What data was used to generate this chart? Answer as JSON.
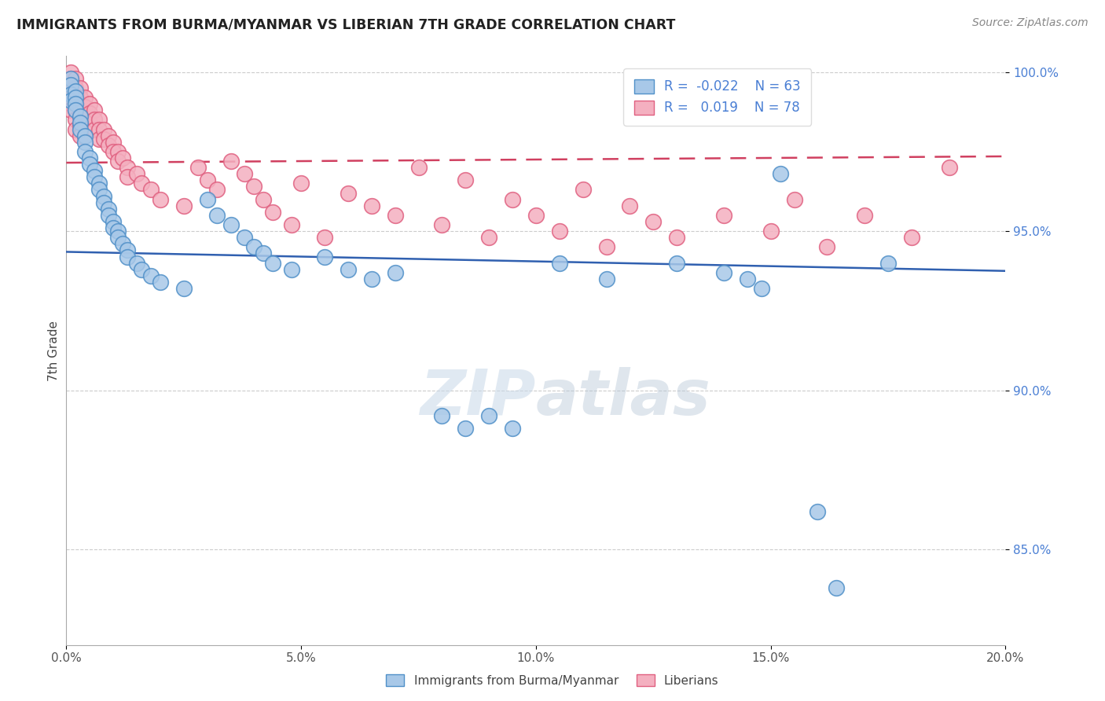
{
  "title": "IMMIGRANTS FROM BURMA/MYANMAR VS LIBERIAN 7TH GRADE CORRELATION CHART",
  "source": "Source: ZipAtlas.com",
  "ylabel": "7th Grade",
  "xlim": [
    0.0,
    0.2
  ],
  "ylim": [
    0.82,
    1.005
  ],
  "ytick_labels": [
    "85.0%",
    "90.0%",
    "95.0%",
    "100.0%"
  ],
  "ytick_vals": [
    0.85,
    0.9,
    0.95,
    1.0
  ],
  "xtick_labels": [
    "0.0%",
    "",
    "5.0%",
    "",
    "10.0%",
    "",
    "15.0%",
    "",
    "20.0%"
  ],
  "xtick_vals": [
    0.0,
    0.025,
    0.05,
    0.075,
    0.1,
    0.125,
    0.15,
    0.175,
    0.2
  ],
  "blue_color": "#a8c8e8",
  "pink_color": "#f4b0c0",
  "blue_edge_color": "#5090c8",
  "pink_edge_color": "#e06080",
  "blue_line_color": "#3060b0",
  "pink_line_color": "#d04060",
  "legend_blue_fill": "#a8c8e8",
  "legend_pink_fill": "#f4b0c0",
  "watermark_color": "#c8d8e8",
  "blue_line_y0": 0.9435,
  "blue_line_y1": 0.9375,
  "pink_line_y0": 0.9715,
  "pink_line_y1": 0.9735,
  "blue_scatter": [
    [
      0.001,
      0.998
    ],
    [
      0.001,
      0.996
    ],
    [
      0.001,
      0.993
    ],
    [
      0.001,
      0.991
    ],
    [
      0.002,
      0.994
    ],
    [
      0.002,
      0.992
    ],
    [
      0.002,
      0.99
    ],
    [
      0.002,
      0.988
    ],
    [
      0.003,
      0.986
    ],
    [
      0.003,
      0.984
    ],
    [
      0.003,
      0.982
    ],
    [
      0.004,
      0.98
    ],
    [
      0.004,
      0.978
    ],
    [
      0.004,
      0.975
    ],
    [
      0.005,
      0.973
    ],
    [
      0.005,
      0.971
    ],
    [
      0.006,
      0.969
    ],
    [
      0.006,
      0.967
    ],
    [
      0.007,
      0.965
    ],
    [
      0.007,
      0.963
    ],
    [
      0.008,
      0.961
    ],
    [
      0.008,
      0.959
    ],
    [
      0.009,
      0.957
    ],
    [
      0.009,
      0.955
    ],
    [
      0.01,
      0.953
    ],
    [
      0.01,
      0.951
    ],
    [
      0.011,
      0.95
    ],
    [
      0.011,
      0.948
    ],
    [
      0.012,
      0.946
    ],
    [
      0.013,
      0.944
    ],
    [
      0.013,
      0.942
    ],
    [
      0.015,
      0.94
    ],
    [
      0.016,
      0.938
    ],
    [
      0.018,
      0.936
    ],
    [
      0.02,
      0.934
    ],
    [
      0.025,
      0.932
    ],
    [
      0.03,
      0.96
    ],
    [
      0.032,
      0.955
    ],
    [
      0.035,
      0.952
    ],
    [
      0.038,
      0.948
    ],
    [
      0.04,
      0.945
    ],
    [
      0.042,
      0.943
    ],
    [
      0.044,
      0.94
    ],
    [
      0.048,
      0.938
    ],
    [
      0.055,
      0.942
    ],
    [
      0.06,
      0.938
    ],
    [
      0.065,
      0.935
    ],
    [
      0.07,
      0.937
    ],
    [
      0.08,
      0.892
    ],
    [
      0.085,
      0.888
    ],
    [
      0.09,
      0.892
    ],
    [
      0.095,
      0.888
    ],
    [
      0.105,
      0.94
    ],
    [
      0.115,
      0.935
    ],
    [
      0.13,
      0.94
    ],
    [
      0.14,
      0.937
    ],
    [
      0.145,
      0.935
    ],
    [
      0.148,
      0.932
    ],
    [
      0.152,
      0.968
    ],
    [
      0.16,
      0.862
    ],
    [
      0.164,
      0.838
    ],
    [
      0.175,
      0.94
    ]
  ],
  "pink_scatter": [
    [
      0.001,
      1.0
    ],
    [
      0.001,
      0.998
    ],
    [
      0.001,
      0.996
    ],
    [
      0.001,
      0.994
    ],
    [
      0.001,
      0.992
    ],
    [
      0.001,
      0.99
    ],
    [
      0.001,
      0.988
    ],
    [
      0.002,
      0.998
    ],
    [
      0.002,
      0.995
    ],
    [
      0.002,
      0.992
    ],
    [
      0.002,
      0.99
    ],
    [
      0.002,
      0.988
    ],
    [
      0.002,
      0.985
    ],
    [
      0.002,
      0.982
    ],
    [
      0.003,
      0.995
    ],
    [
      0.003,
      0.992
    ],
    [
      0.003,
      0.989
    ],
    [
      0.003,
      0.986
    ],
    [
      0.003,
      0.983
    ],
    [
      0.003,
      0.98
    ],
    [
      0.004,
      0.992
    ],
    [
      0.004,
      0.989
    ],
    [
      0.004,
      0.986
    ],
    [
      0.004,
      0.983
    ],
    [
      0.004,
      0.98
    ],
    [
      0.005,
      0.99
    ],
    [
      0.005,
      0.987
    ],
    [
      0.005,
      0.984
    ],
    [
      0.006,
      0.988
    ],
    [
      0.006,
      0.985
    ],
    [
      0.006,
      0.982
    ],
    [
      0.007,
      0.985
    ],
    [
      0.007,
      0.982
    ],
    [
      0.007,
      0.979
    ],
    [
      0.008,
      0.982
    ],
    [
      0.008,
      0.979
    ],
    [
      0.009,
      0.98
    ],
    [
      0.009,
      0.977
    ],
    [
      0.01,
      0.978
    ],
    [
      0.01,
      0.975
    ],
    [
      0.011,
      0.975
    ],
    [
      0.011,
      0.972
    ],
    [
      0.012,
      0.973
    ],
    [
      0.013,
      0.97
    ],
    [
      0.013,
      0.967
    ],
    [
      0.015,
      0.968
    ],
    [
      0.016,
      0.965
    ],
    [
      0.018,
      0.963
    ],
    [
      0.02,
      0.96
    ],
    [
      0.025,
      0.958
    ],
    [
      0.028,
      0.97
    ],
    [
      0.03,
      0.966
    ],
    [
      0.032,
      0.963
    ],
    [
      0.035,
      0.972
    ],
    [
      0.038,
      0.968
    ],
    [
      0.04,
      0.964
    ],
    [
      0.042,
      0.96
    ],
    [
      0.044,
      0.956
    ],
    [
      0.048,
      0.952
    ],
    [
      0.05,
      0.965
    ],
    [
      0.055,
      0.948
    ],
    [
      0.06,
      0.962
    ],
    [
      0.065,
      0.958
    ],
    [
      0.07,
      0.955
    ],
    [
      0.075,
      0.97
    ],
    [
      0.08,
      0.952
    ],
    [
      0.085,
      0.966
    ],
    [
      0.09,
      0.948
    ],
    [
      0.095,
      0.96
    ],
    [
      0.1,
      0.955
    ],
    [
      0.105,
      0.95
    ],
    [
      0.11,
      0.963
    ],
    [
      0.115,
      0.945
    ],
    [
      0.12,
      0.958
    ],
    [
      0.125,
      0.953
    ],
    [
      0.13,
      0.948
    ],
    [
      0.14,
      0.955
    ],
    [
      0.15,
      0.95
    ],
    [
      0.155,
      0.96
    ],
    [
      0.162,
      0.945
    ],
    [
      0.17,
      0.955
    ],
    [
      0.18,
      0.948
    ],
    [
      0.188,
      0.97
    ]
  ]
}
